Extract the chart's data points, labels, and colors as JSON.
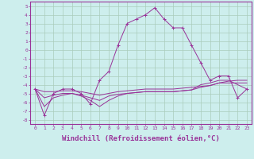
{
  "background_color": "#cdeeed",
  "grid_color": "#aaccbb",
  "line_color": "#993399",
  "xlabel": "Windchill (Refroidissement éolien,°C)",
  "xlabel_fontsize": 6.5,
  "ylim": [
    -8.5,
    5.5
  ],
  "xlim": [
    -0.5,
    23.5
  ],
  "yticks": [
    5,
    4,
    3,
    2,
    1,
    0,
    -1,
    -2,
    -3,
    -4,
    -5,
    -6,
    -7,
    -8
  ],
  "xticks": [
    0,
    1,
    2,
    3,
    4,
    5,
    6,
    7,
    8,
    9,
    10,
    11,
    12,
    13,
    14,
    15,
    16,
    17,
    18,
    19,
    20,
    21,
    22,
    23
  ],
  "series1": [
    -4.5,
    -7.5,
    -5.0,
    -4.5,
    -4.5,
    -5.0,
    -6.2,
    -3.5,
    -2.5,
    0.5,
    3.0,
    3.5,
    4.0,
    4.8,
    3.5,
    2.5,
    2.5,
    0.5,
    -1.5,
    -3.5,
    -3.0,
    -3.0,
    -5.5,
    -4.5
  ],
  "series2": [
    -4.5,
    -4.8,
    -4.8,
    -4.7,
    -4.7,
    -4.8,
    -5.0,
    -5.2,
    -5.0,
    -4.8,
    -4.7,
    -4.6,
    -4.5,
    -4.5,
    -4.5,
    -4.5,
    -4.4,
    -4.3,
    -4.2,
    -4.1,
    -3.8,
    -3.6,
    -3.5,
    -3.5
  ],
  "series3": [
    -4.5,
    -5.5,
    -5.2,
    -5.0,
    -5.0,
    -5.2,
    -5.5,
    -5.8,
    -5.3,
    -5.1,
    -5.0,
    -4.9,
    -4.8,
    -4.8,
    -4.8,
    -4.8,
    -4.7,
    -4.6,
    -4.3,
    -4.1,
    -3.8,
    -3.8,
    -3.8,
    -3.8
  ],
  "series4": [
    -4.5,
    -6.5,
    -5.5,
    -5.2,
    -5.0,
    -5.3,
    -5.8,
    -6.5,
    -5.8,
    -5.3,
    -5.0,
    -4.9,
    -4.8,
    -4.8,
    -4.8,
    -4.8,
    -4.7,
    -4.6,
    -4.0,
    -3.8,
    -3.5,
    -3.5,
    -4.0,
    -4.5
  ]
}
